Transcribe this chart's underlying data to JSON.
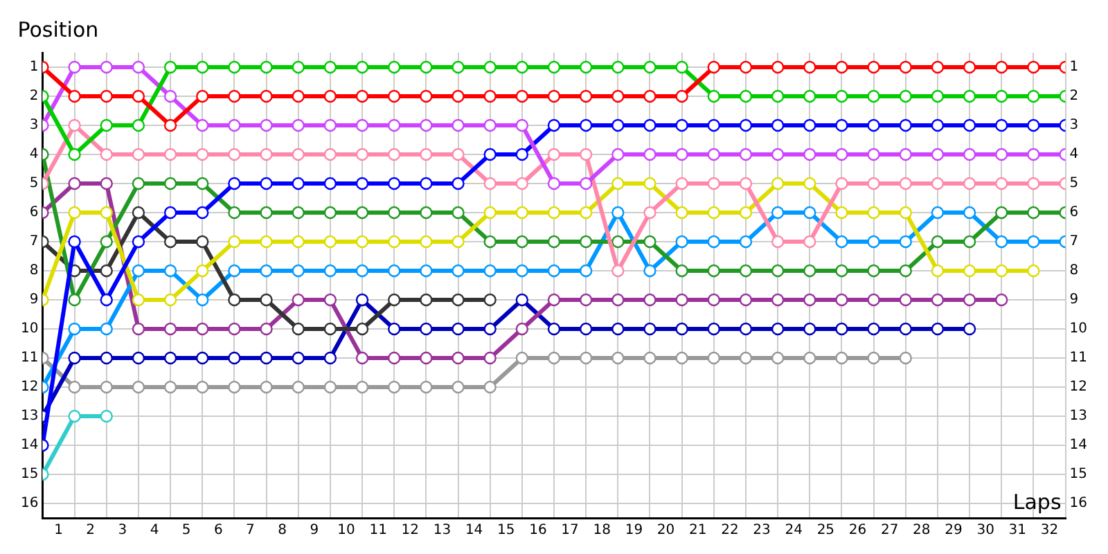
{
  "chart_data": {
    "type": "line",
    "xlabel": "Laps",
    "ylabel": "Position",
    "x": [
      0,
      1,
      2,
      3,
      4,
      5,
      6,
      7,
      8,
      9,
      10,
      11,
      12,
      13,
      14,
      15,
      16,
      17,
      18,
      19,
      20,
      21,
      22,
      23,
      24,
      25,
      26,
      27,
      28,
      29,
      30,
      31,
      32
    ],
    "series": [
      {
        "color": "#ff0000",
        "values": [
          1,
          2,
          2,
          2,
          3,
          2,
          2,
          2,
          2,
          2,
          2,
          2,
          2,
          2,
          2,
          2,
          2,
          2,
          2,
          2,
          2,
          1,
          1,
          1,
          1,
          1,
          1,
          1,
          1,
          1,
          1,
          1,
          1
        ]
      },
      {
        "color": "#00cc00",
        "values": [
          2,
          4,
          3,
          3,
          1,
          1,
          1,
          1,
          1,
          1,
          1,
          1,
          1,
          1,
          1,
          1,
          1,
          1,
          1,
          1,
          1,
          2,
          2,
          2,
          2,
          2,
          2,
          2,
          2,
          2,
          2,
          2,
          2
        ]
      },
      {
        "color": "#cc44ff",
        "values": [
          3,
          1,
          1,
          1,
          2,
          3,
          3,
          3,
          3,
          3,
          3,
          3,
          3,
          3,
          3,
          3,
          5,
          5,
          4,
          4,
          4,
          4,
          4,
          4,
          4,
          4,
          4,
          4,
          4,
          4,
          4,
          4,
          4
        ]
      },
      {
        "color": "#0000ff",
        "values": [
          14,
          7,
          9,
          7,
          6,
          6,
          5,
          5,
          5,
          5,
          5,
          5,
          5,
          5,
          4,
          4,
          3,
          3,
          3,
          3,
          3,
          3,
          3,
          3,
          3,
          3,
          3,
          3,
          3,
          3,
          3,
          3,
          3
        ]
      },
      {
        "color": "#ff88aa",
        "values": [
          5,
          3,
          4,
          4,
          4,
          4,
          4,
          4,
          4,
          4,
          4,
          4,
          4,
          4,
          5,
          5,
          4,
          4,
          8,
          6,
          5,
          5,
          5,
          7,
          7,
          5,
          5,
          5,
          5,
          5,
          5,
          5,
          5
        ]
      },
      {
        "color": "#dddd00",
        "values": [
          9,
          6,
          6,
          9,
          9,
          8,
          7,
          7,
          7,
          7,
          7,
          7,
          7,
          7,
          6,
          6,
          6,
          6,
          5,
          5,
          6,
          6,
          6,
          5,
          5,
          6,
          6,
          6,
          8,
          8,
          8,
          8,
          null
        ]
      },
      {
        "color": "#229922",
        "values": [
          4,
          9,
          7,
          5,
          5,
          5,
          6,
          6,
          6,
          6,
          6,
          6,
          6,
          6,
          7,
          7,
          7,
          7,
          7,
          7,
          8,
          8,
          8,
          8,
          8,
          8,
          8,
          8,
          7,
          7,
          6,
          6,
          6
        ]
      },
      {
        "color": "#333333",
        "values": [
          7,
          8,
          8,
          6,
          7,
          7,
          9,
          9,
          10,
          10,
          10,
          9,
          9,
          9,
          9,
          null,
          null,
          null,
          null,
          null,
          null,
          null,
          null,
          null,
          null,
          null,
          null,
          null,
          null,
          null,
          null,
          null,
          null
        ]
      },
      {
        "color": "#0099ff",
        "values": [
          12,
          10,
          10,
          8,
          8,
          9,
          8,
          8,
          8,
          8,
          8,
          8,
          8,
          8,
          8,
          8,
          8,
          8,
          6,
          8,
          7,
          7,
          7,
          6,
          6,
          7,
          7,
          7,
          6,
          6,
          7,
          7,
          7
        ]
      },
      {
        "color": "#993399",
        "values": [
          6,
          5,
          5,
          10,
          10,
          10,
          10,
          10,
          9,
          9,
          11,
          11,
          11,
          11,
          11,
          10,
          9,
          9,
          9,
          9,
          9,
          9,
          9,
          9,
          9,
          9,
          9,
          9,
          9,
          9,
          9,
          null,
          null
        ]
      },
      {
        "color": "#0000bb",
        "values": [
          13,
          11,
          11,
          11,
          11,
          11,
          11,
          11,
          11,
          11,
          9,
          10,
          10,
          10,
          10,
          9,
          10,
          10,
          10,
          10,
          10,
          10,
          10,
          10,
          10,
          10,
          10,
          10,
          10,
          10,
          null,
          null,
          null
        ]
      },
      {
        "color": "#999999",
        "values": [
          11,
          12,
          12,
          12,
          12,
          12,
          12,
          12,
          12,
          12,
          12,
          12,
          12,
          12,
          12,
          11,
          11,
          11,
          11,
          11,
          11,
          11,
          11,
          11,
          11,
          11,
          11,
          11,
          null,
          null,
          null,
          null,
          null
        ]
      },
      {
        "color": "#33cccc",
        "values": [
          15,
          13,
          13,
          null,
          null,
          null,
          null,
          null,
          null,
          null,
          null,
          null,
          null,
          null,
          null,
          null,
          null,
          null,
          null,
          null,
          null,
          null,
          null,
          null,
          null,
          null,
          null,
          null,
          null,
          null,
          null,
          null,
          null
        ]
      }
    ],
    "xlim": [
      0,
      32
    ],
    "xticks": [
      {
        "value": 0.5,
        "label": "1"
      },
      {
        "value": 1.5,
        "label": "2"
      },
      {
        "value": 2.5,
        "label": "3"
      },
      {
        "value": 3.5,
        "label": "4"
      },
      {
        "value": 4.5,
        "label": "5"
      },
      {
        "value": 5.5,
        "label": "6"
      },
      {
        "value": 6.5,
        "label": "7"
      },
      {
        "value": 7.5,
        "label": "8"
      },
      {
        "value": 8.5,
        "label": "9"
      },
      {
        "value": 9.5,
        "label": "10"
      },
      {
        "value": 10.5,
        "label": "11"
      },
      {
        "value": 11.5,
        "label": "12"
      },
      {
        "value": 12.5,
        "label": "13"
      },
      {
        "value": 13.5,
        "label": "14"
      },
      {
        "value": 14.5,
        "label": "15"
      },
      {
        "value": 15.5,
        "label": "16"
      },
      {
        "value": 16.5,
        "label": "17"
      },
      {
        "value": 17.5,
        "label": "18"
      },
      {
        "value": 18.5,
        "label": "19"
      },
      {
        "value": 19.5,
        "label": "20"
      },
      {
        "value": 20.5,
        "label": "21"
      },
      {
        "value": 21.5,
        "label": "22"
      },
      {
        "value": 22.5,
        "label": "23"
      },
      {
        "value": 23.5,
        "label": "24"
      },
      {
        "value": 24.5,
        "label": "25"
      },
      {
        "value": 25.5,
        "label": "26"
      },
      {
        "value": 26.5,
        "label": "27"
      },
      {
        "value": 27.5,
        "label": "28"
      },
      {
        "value": 28.5,
        "label": "29"
      },
      {
        "value": 29.5,
        "label": "30"
      },
      {
        "value": 30.5,
        "label": "31"
      },
      {
        "value": 31.5,
        "label": "32"
      }
    ],
    "ylim": [
      16.5,
      0.5
    ],
    "yticks": [
      1,
      2,
      3,
      4,
      5,
      6,
      7,
      8,
      9,
      10,
      11,
      12,
      13,
      14,
      15,
      16
    ],
    "y2lim": [
      16.5,
      0.5
    ],
    "y2ticks": [
      1,
      2,
      3,
      4,
      5,
      6,
      7,
      8,
      9,
      10,
      11,
      12,
      13,
      14,
      15,
      16
    ],
    "grid": true,
    "legend": false,
    "marker": "circle",
    "line_style": "solid"
  }
}
